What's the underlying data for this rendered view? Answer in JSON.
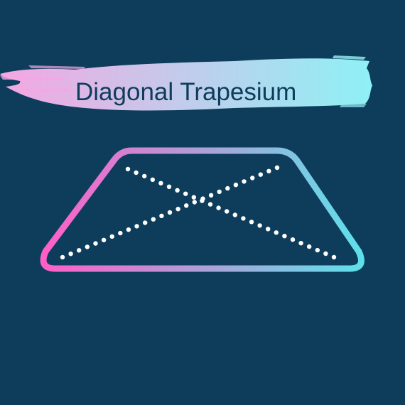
{
  "title": "Diagonal Trapesium",
  "colors": {
    "background": "#0d3d5b",
    "title_text": "#0d3d5b",
    "brush_start": "#f4a7e2",
    "brush_end": "#8ef1f5",
    "outline_start": "#ff5fc8",
    "outline_end": "#5ee0ea",
    "diagonal_dots": "#ffffff"
  },
  "diagram": {
    "shape": "trapezium",
    "diagonals": 2,
    "diagonal_style": "dotted"
  }
}
